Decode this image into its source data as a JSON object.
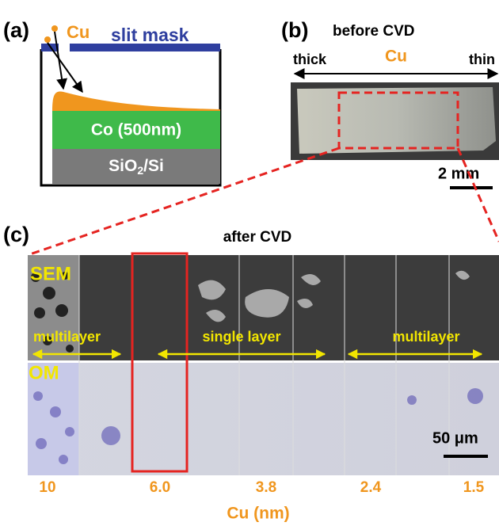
{
  "panel_a": {
    "label": "(a)",
    "source": "Cu",
    "mask": "slit mask",
    "layer": "Co (500nm)",
    "substrate": [
      "SiO",
      "2",
      "/Si"
    ]
  },
  "panel_b": {
    "label": "(b)",
    "title": "before CVD",
    "left": "thick",
    "middle": "Cu",
    "right": "thin",
    "scale": "2 mm"
  },
  "panel_c": {
    "label": "(c)",
    "title": "after CVD",
    "sem": "SEM",
    "om": "OM",
    "regions": [
      "multilayer",
      "single layer",
      "multilayer"
    ],
    "scale": "50 μm",
    "tick_labels": [
      "10",
      "6.0",
      "3.8",
      "2.4",
      "1.5"
    ],
    "axis_title": "Cu (nm)"
  }
}
